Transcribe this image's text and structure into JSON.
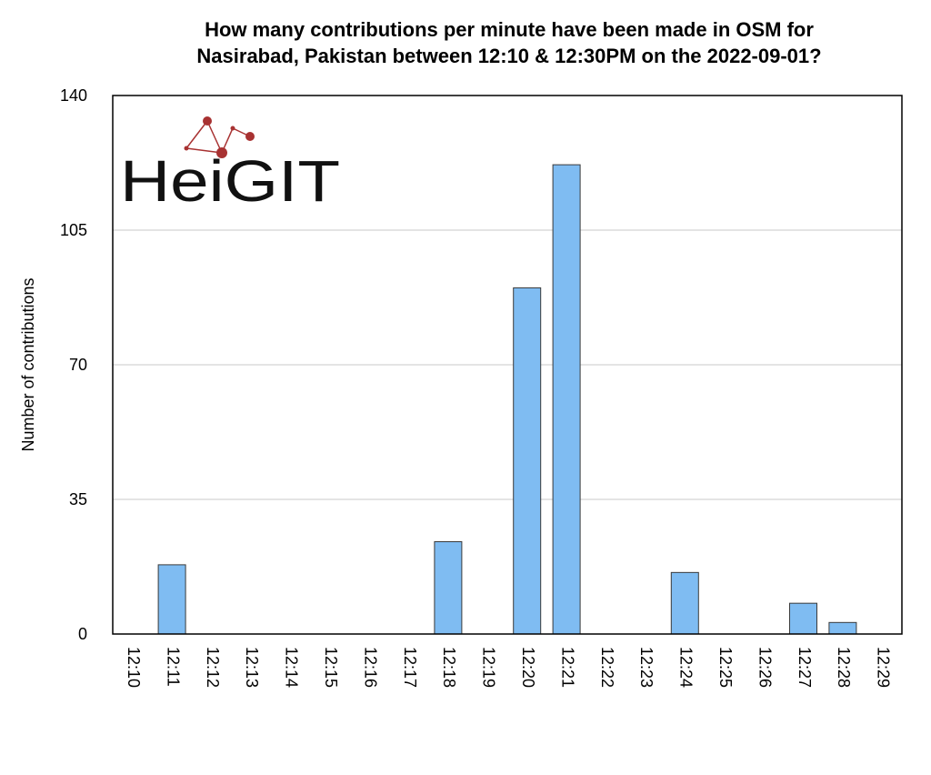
{
  "chart_data": {
    "type": "bar",
    "title_lines": [
      "How many contributions per minute have been made in OSM for",
      "Nasirabad, Pakistan between 12:10 & 12:30PM on the 2022-09-01?"
    ],
    "xlabel": "",
    "ylabel": "Number of contributions",
    "ylim": [
      0,
      140
    ],
    "yticks": [
      0,
      35,
      70,
      105,
      140
    ],
    "grid": true,
    "categories": [
      "12:10",
      "12:11",
      "12:12",
      "12:13",
      "12:14",
      "12:15",
      "12:16",
      "12:17",
      "12:18",
      "12:19",
      "12:20",
      "12:21",
      "12:22",
      "12:23",
      "12:24",
      "12:25",
      "12:26",
      "12:27",
      "12:28",
      "12:29"
    ],
    "values": [
      0,
      18,
      0,
      0,
      0,
      0,
      0,
      0,
      24,
      0,
      90,
      122,
      0,
      0,
      16,
      0,
      0,
      8,
      3,
      0
    ],
    "bar_color": "#7fbcf2",
    "bar_edge_color": "#3a3a3a"
  },
  "logo": {
    "text": "HeiGIT",
    "accent_color": "#a83232"
  }
}
